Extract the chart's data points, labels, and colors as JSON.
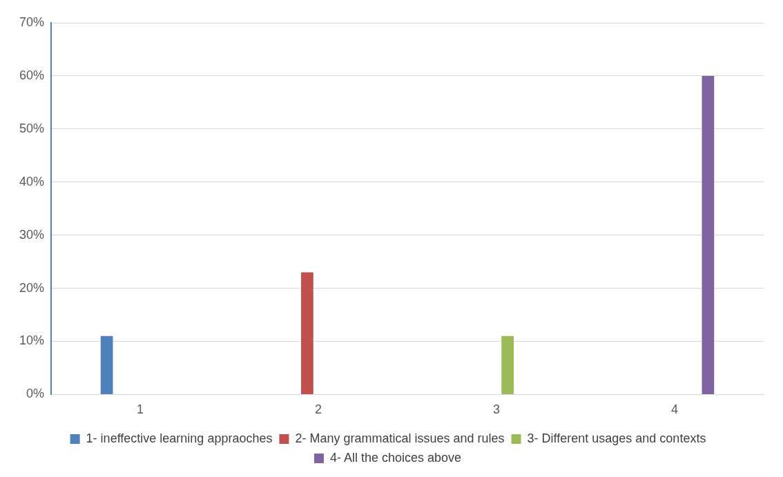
{
  "chart_data": {
    "type": "bar",
    "categories": [
      "1",
      "2",
      "3",
      "4"
    ],
    "series": [
      {
        "name": "1- ineffective learning appraoches",
        "color": "#4f81bd",
        "values": [
          11,
          null,
          null,
          null
        ]
      },
      {
        "name": "2- Many grammatical issues and rules",
        "color": "#c0504d",
        "values": [
          null,
          23,
          null,
          null
        ]
      },
      {
        "name": "3- Different usages and contexts",
        "color": "#9bbb59",
        "values": [
          null,
          null,
          11,
          null
        ]
      },
      {
        "name": "4- All the choices above",
        "color": "#8064a2",
        "values": [
          null,
          null,
          null,
          60
        ]
      }
    ],
    "ylim": [
      0,
      70
    ],
    "yticks": [
      {
        "value": 0,
        "label": "0%"
      },
      {
        "value": 10,
        "label": "10%"
      },
      {
        "value": 20,
        "label": "20%"
      },
      {
        "value": 30,
        "label": "30%"
      },
      {
        "value": 40,
        "label": "40%"
      },
      {
        "value": 50,
        "label": "50%"
      },
      {
        "value": 60,
        "label": "60%"
      },
      {
        "value": 70,
        "label": "70%"
      }
    ],
    "grid": "y",
    "legend": "bottom"
  }
}
